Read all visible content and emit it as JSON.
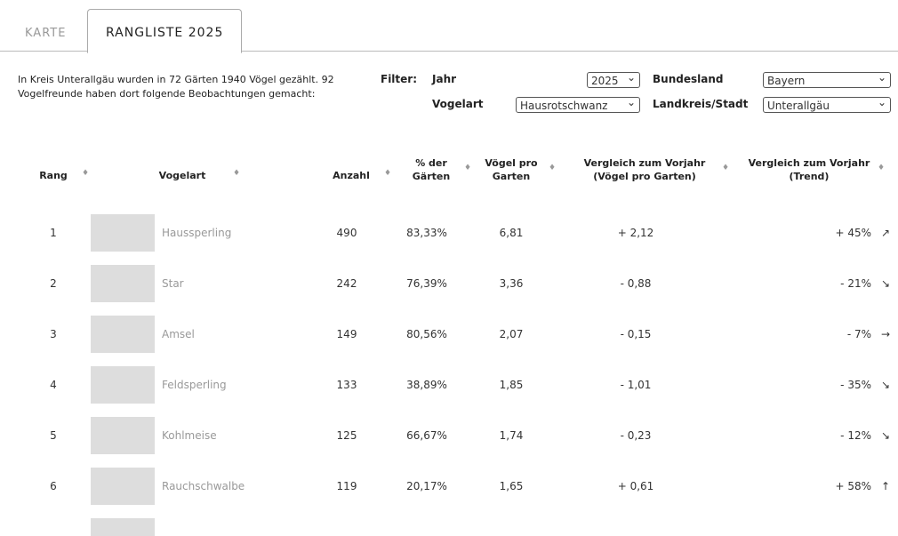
{
  "tabs": [
    "KARTE",
    "RANGLISTE 2025"
  ],
  "intro": "In Kreis Unterallgäu wurden in 72 Gärten 1940 Vögel gezählt. 92 Vogelfreunde haben dort folgende Beobachtungen gemacht:",
  "filter": {
    "label": "Filter:",
    "jahr_label": "Jahr",
    "jahr": "2025",
    "bundesland_label": "Bundesland",
    "bundesland": "Bayern",
    "vogelart_label": "Vogelart",
    "vogelart": "Hausrotschwanz",
    "landkreis_label": "Landkreis/Stadt",
    "landkreis": "Unterallgäu"
  },
  "table": {
    "headers": [
      "Rang",
      "Vogelart",
      "Anzahl",
      "% der Gärten",
      "Vögel pro Garten",
      "Vergleich zum Vorjahr (Vögel pro Garten)",
      "Vergleich zum Vorjahr (Trend)"
    ],
    "rows": [
      [
        "1",
        "Haussperling",
        "490",
        "83,33%",
        "6,81",
        "+ 2,12",
        "+ 45%",
        "↗"
      ],
      [
        "2",
        "Star",
        "242",
        "76,39%",
        "3,36",
        "- 0,88",
        "- 21%",
        "↘"
      ],
      [
        "3",
        "Amsel",
        "149",
        "80,56%",
        "2,07",
        "- 0,15",
        "- 7%",
        "→"
      ],
      [
        "4",
        "Feldsperling",
        "133",
        "38,89%",
        "1,85",
        "- 1,01",
        "- 35%",
        "↘"
      ],
      [
        "5",
        "Kohlmeise",
        "125",
        "66,67%",
        "1,74",
        "- 0,23",
        "- 12%",
        "↘"
      ],
      [
        "6",
        "Rauchschwalbe",
        "119",
        "20,17%",
        "1,65",
        "+ 0,61",
        "+ 58%",
        "↑"
      ]
    ]
  }
}
